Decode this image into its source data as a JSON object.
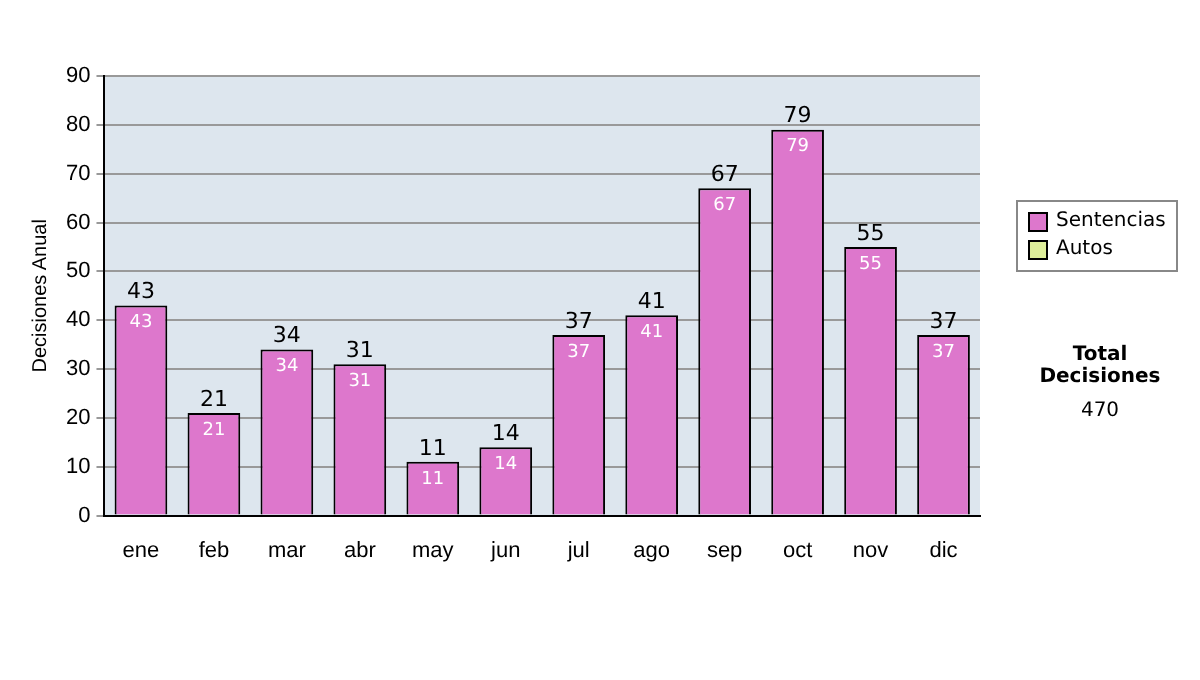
{
  "chart_data": {
    "type": "bar",
    "ylabel": "Decisiones Anual",
    "categories": [
      "ene",
      "feb",
      "mar",
      "abr",
      "may",
      "jun",
      "jul",
      "ago",
      "sep",
      "oct",
      "nov",
      "dic"
    ],
    "series": [
      {
        "name": "Sentencias",
        "color": "#dd77cc",
        "values": [
          43,
          21,
          34,
          31,
          11,
          14,
          37,
          41,
          67,
          79,
          55,
          37
        ],
        "value_labels": [
          "43",
          "21",
          "34",
          "31",
          "11",
          "14",
          "37",
          "41",
          "67",
          "79",
          "55",
          "37"
        ]
      },
      {
        "name": "Autos",
        "color": "#ddee99",
        "values": [
          0,
          0,
          0,
          0,
          0,
          0,
          0,
          0,
          0,
          0,
          0,
          0
        ],
        "value_labels": [
          null,
          null,
          null,
          null,
          null,
          null,
          null,
          null,
          null,
          null,
          null,
          null
        ]
      }
    ],
    "stacked": true,
    "totals": [
      "43",
      "21",
      "34",
      "31",
      "11",
      "14",
      "37",
      "41",
      "67",
      "79",
      "55",
      "37"
    ],
    "ylim": [
      0,
      90
    ],
    "yticks": [
      0,
      10,
      20,
      30,
      40,
      50,
      60,
      70,
      80,
      90
    ],
    "grid": "y",
    "legend": "right",
    "annotations": [
      "Total Decisiones",
      "470"
    ]
  }
}
